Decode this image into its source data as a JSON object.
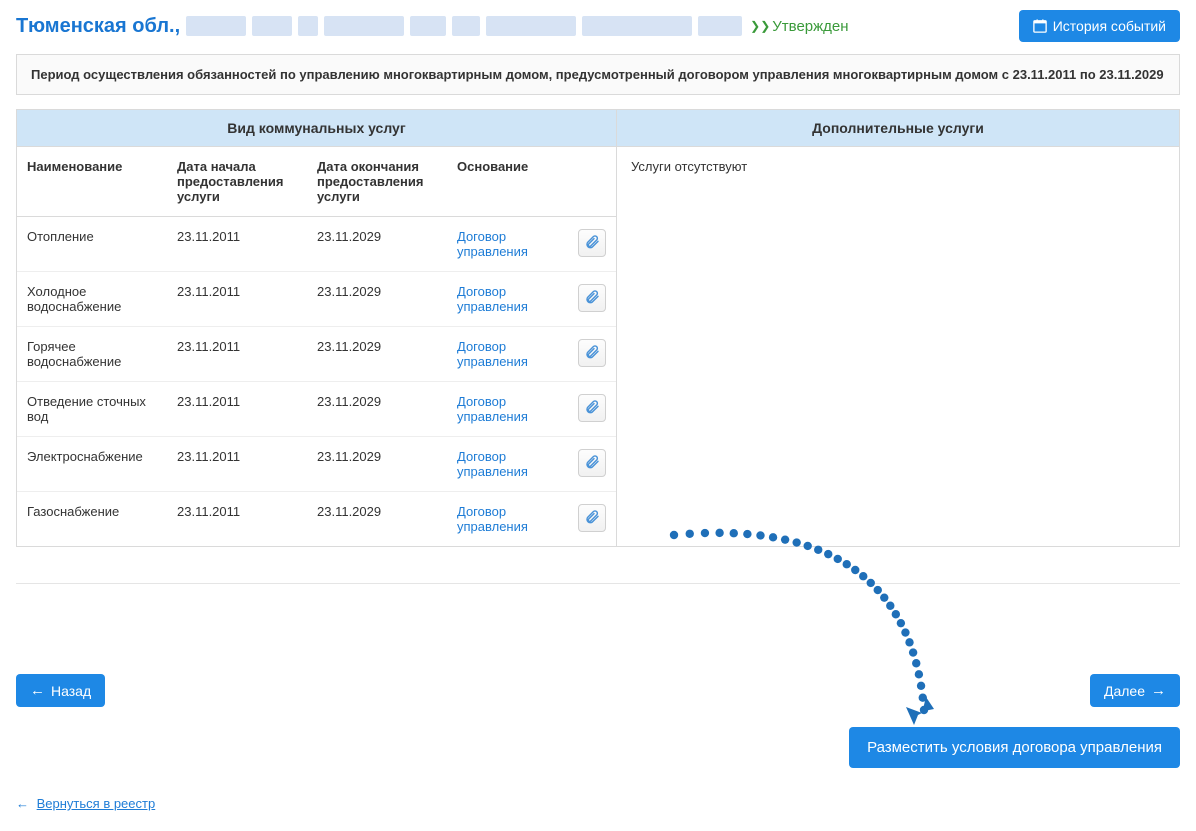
{
  "colors": {
    "primary": "#1e88e5",
    "link": "#1e7cd6",
    "green": "#3a9a3a",
    "header_bg": "#cfe5f7",
    "border": "#dadada",
    "row_border": "#eeeeee",
    "redact": "#d7e3f4",
    "dot": "#1f6fb8"
  },
  "header": {
    "region": "Тюменская обл.,",
    "redact_widths": [
      60,
      40,
      20,
      80,
      36,
      28,
      90,
      110,
      44
    ],
    "status_text": "Утвержден",
    "history_btn": "История событий"
  },
  "period_text": "Период осуществления обязанностей по управлению многоквартирным домом, предусмотренный договором управления многоквартирным домом с 23.11.2011 по 23.11.2029",
  "left_panel": {
    "title": "Вид коммунальных услуг",
    "columns": {
      "name": "Наименование",
      "start": "Дата начала предоставления услуги",
      "end": "Дата окончания предоставления услуги",
      "basis": "Основание"
    },
    "basis_link_label": "Договор управления",
    "rows": [
      {
        "name": "Отопление",
        "start": "23.11.2011",
        "end": "23.11.2029"
      },
      {
        "name": "Холодное водоснабжение",
        "start": "23.11.2011",
        "end": "23.11.2029"
      },
      {
        "name": "Горячее водоснабжение",
        "start": "23.11.2011",
        "end": "23.11.2029"
      },
      {
        "name": "Отведение сточных вод",
        "start": "23.11.2011",
        "end": "23.11.2029"
      },
      {
        "name": "Электроснабжение",
        "start": "23.11.2011",
        "end": "23.11.2029"
      },
      {
        "name": "Газоснабжение",
        "start": "23.11.2011",
        "end": "23.11.2029"
      }
    ]
  },
  "right_panel": {
    "title": "Дополнительные услуги",
    "empty": "Услуги отсутствуют"
  },
  "nav": {
    "back": "Назад",
    "next": "Далее",
    "publish": "Разместить условия договора управления",
    "return_link": "Вернуться в реестр"
  },
  "icons": {
    "attach_color": "#4a93d8"
  }
}
